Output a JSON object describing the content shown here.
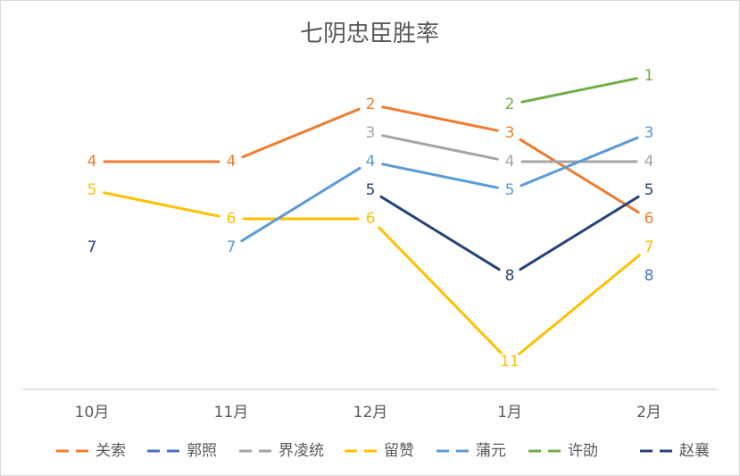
{
  "chart_data": {
    "type": "line",
    "title": "七阴忠臣胜率",
    "categories": [
      "10月",
      "11月",
      "12月",
      "1月",
      "2月"
    ],
    "y_inverted": true,
    "ylim": [
      0.5,
      11.5
    ],
    "grid": false,
    "legend_position": "bottom",
    "series": [
      {
        "name": "关索",
        "color": "#ED7D31",
        "values": [
          4,
          4,
          2,
          3,
          6
        ]
      },
      {
        "name": "郭照",
        "color": "#4472C4",
        "values": [
          null,
          null,
          null,
          null,
          8
        ]
      },
      {
        "name": "界凌统",
        "color": "#A5A5A5",
        "values": [
          null,
          null,
          3,
          4,
          4
        ]
      },
      {
        "name": "留赞",
        "color": "#FFC000",
        "values": [
          5,
          6,
          6,
          11,
          7
        ]
      },
      {
        "name": "蒲元",
        "color": "#5B9BD5",
        "values": [
          null,
          7,
          4,
          5,
          3
        ]
      },
      {
        "name": "许劭",
        "color": "#70AD47",
        "values": [
          null,
          null,
          null,
          2,
          1
        ]
      },
      {
        "name": "赵襄",
        "color": "#264478",
        "values": [
          7,
          null,
          5,
          8,
          5
        ]
      }
    ]
  }
}
